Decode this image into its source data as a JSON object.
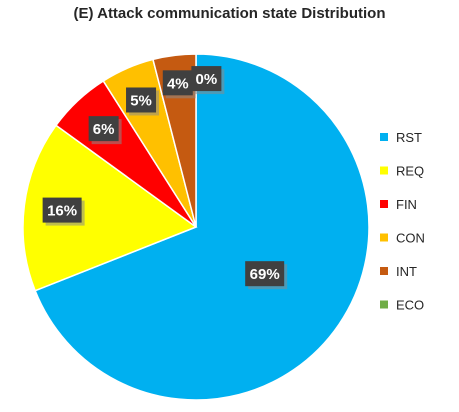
{
  "chart_data": {
    "type": "pie",
    "title": "(E) Attack communication state Distribution",
    "labels": [
      "RST",
      "REQ",
      "FIN",
      "CON",
      "INT",
      "ECO"
    ],
    "values": [
      69,
      16,
      6,
      5,
      4,
      0
    ],
    "data_labels": [
      "69%",
      "16%",
      "6%",
      "5%",
      "4%",
      "0%"
    ],
    "colors": [
      "#00B0F0",
      "#FFFF00",
      "#FF0000",
      "#FFC000",
      "#C55A11",
      "#70AD47"
    ],
    "legend_position": "right",
    "start_angle": "top",
    "direction": "clockwise"
  }
}
